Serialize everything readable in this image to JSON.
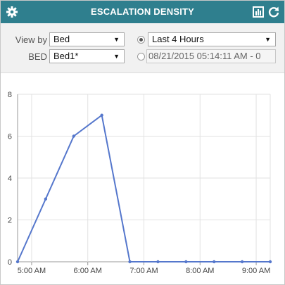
{
  "header": {
    "title": "ESCALATION DENSITY",
    "left_icon": "gear-icon",
    "right_icons": [
      "column-chooser-icon",
      "refresh-icon"
    ],
    "bg_color": "#2f7f8e"
  },
  "controls": {
    "view_by_label": "View by",
    "view_by_value": "Bed",
    "bed_label": "BED",
    "bed_value": "Bed1*",
    "range_value": "Last 4 Hours",
    "range_selected": true,
    "date_value": "08/21/2015 05:14:11 AM - 0",
    "date_selected": false
  },
  "chart_data": {
    "type": "line",
    "title": "",
    "xlabel": "",
    "ylabel": "",
    "y_ticks": [
      "0",
      "2",
      "4",
      "6",
      "8"
    ],
    "ylim": [
      0,
      8
    ],
    "x_ticks": [
      "5:00 AM",
      "6:00 AM",
      "7:00 AM",
      "8:00 AM",
      "9:00 AM"
    ],
    "x_tick_values": [
      300,
      360,
      420,
      480,
      540
    ],
    "xlim": [
      285,
      555
    ],
    "grid": true,
    "series": [
      {
        "color": "#5577cc",
        "x": [
          285,
          315,
          345,
          375,
          405,
          435,
          465,
          495,
          525,
          555
        ],
        "y": [
          0,
          3,
          6,
          7,
          0,
          0,
          0,
          0,
          0,
          0
        ]
      }
    ]
  }
}
